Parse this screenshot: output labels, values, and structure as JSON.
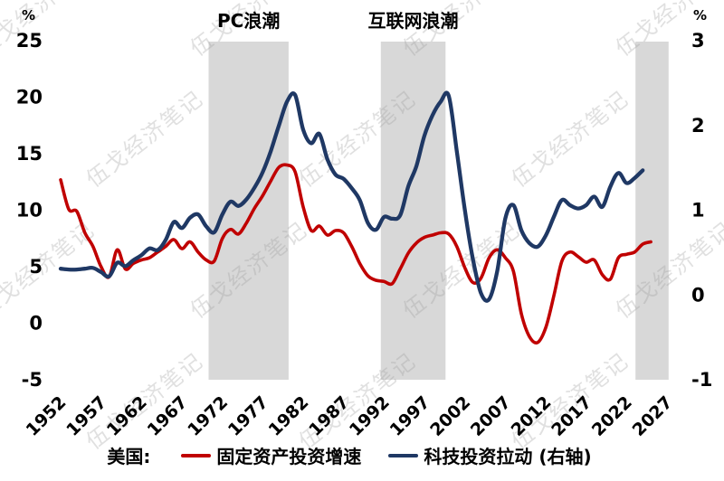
{
  "watermark": {
    "text": "伍戈经济笔记",
    "color": "#9a9a9a"
  },
  "chart_data": {
    "type": "line",
    "title": "",
    "band_color": "#D8D8D8",
    "left_axis": {
      "unit": "%",
      "min": -5,
      "max": 25,
      "ticks": [
        25,
        20,
        15,
        10,
        5,
        0,
        -5
      ]
    },
    "right_axis": {
      "unit": "%",
      "min": -1,
      "max": 3,
      "ticks": [
        3,
        2,
        1,
        0,
        -1
      ]
    },
    "x_axis": {
      "min": 1952,
      "max": 2027,
      "tick_years": [
        1952,
        1957,
        1962,
        1967,
        1972,
        1977,
        1982,
        1987,
        1992,
        1997,
        2002,
        2007,
        2012,
        2017,
        2022,
        2027
      ]
    },
    "bands": [
      {
        "label": "PC浪潮",
        "from": 1970.3,
        "to": 1980.2
      },
      {
        "label": "互联网浪潮",
        "from": 1991.6,
        "to": 1999.6
      },
      {
        "label": "",
        "from": 2023.1,
        "to": 2027.2
      }
    ],
    "legend": {
      "prefix": "美国:",
      "position": "bottom"
    },
    "grid": false,
    "series": [
      {
        "name": "固定资产投资增速",
        "axis": "left",
        "color": "#C00000",
        "start_year": 1952,
        "values": [
          12.7,
          10.1,
          9.9,
          8.0,
          6.8,
          5.0,
          4.1,
          6.5,
          4.8,
          5.3,
          5.6,
          5.8,
          6.3,
          6.8,
          7.4,
          6.6,
          7.2,
          6.3,
          5.6,
          5.5,
          7.5,
          8.3,
          7.9,
          8.9,
          10.2,
          11.3,
          12.6,
          13.8,
          14.0,
          13.4,
          10.3,
          8.2,
          8.6,
          7.8,
          8.2,
          8.0,
          6.8,
          5.3,
          4.2,
          3.8,
          3.7,
          3.5,
          4.8,
          6.2,
          7.1,
          7.6,
          7.8,
          8.0,
          7.9,
          6.8,
          4.9,
          3.6,
          4.0,
          5.8,
          6.5,
          5.8,
          4.6,
          0.8,
          -1.2,
          -1.7,
          -0.4,
          2.4,
          5.5,
          6.3,
          5.9,
          5.4,
          5.6,
          4.3,
          3.9,
          5.8,
          6.1,
          6.3,
          7.0,
          7.2
        ]
      },
      {
        "name": "科技投资拉动 (右轴)",
        "axis": "right",
        "color": "#1F3864",
        "start_year": 1952,
        "values": [
          0.31,
          0.3,
          0.3,
          0.31,
          0.32,
          0.27,
          0.22,
          0.38,
          0.34,
          0.41,
          0.47,
          0.55,
          0.53,
          0.65,
          0.86,
          0.79,
          0.91,
          0.95,
          0.81,
          0.74,
          0.95,
          1.1,
          1.05,
          1.13,
          1.27,
          1.45,
          1.7,
          2.0,
          2.28,
          2.36,
          1.95,
          1.79,
          1.9,
          1.6,
          1.42,
          1.37,
          1.26,
          1.12,
          0.85,
          0.77,
          0.92,
          0.9,
          0.94,
          1.28,
          1.52,
          1.88,
          2.12,
          2.28,
          2.35,
          1.7,
          1.0,
          0.42,
          0.02,
          -0.05,
          0.28,
          0.9,
          1.06,
          0.76,
          0.61,
          0.57,
          0.7,
          0.92,
          1.12,
          1.06,
          1.02,
          1.06,
          1.16,
          1.04,
          1.28,
          1.44,
          1.32,
          1.38,
          1.47
        ]
      }
    ]
  }
}
